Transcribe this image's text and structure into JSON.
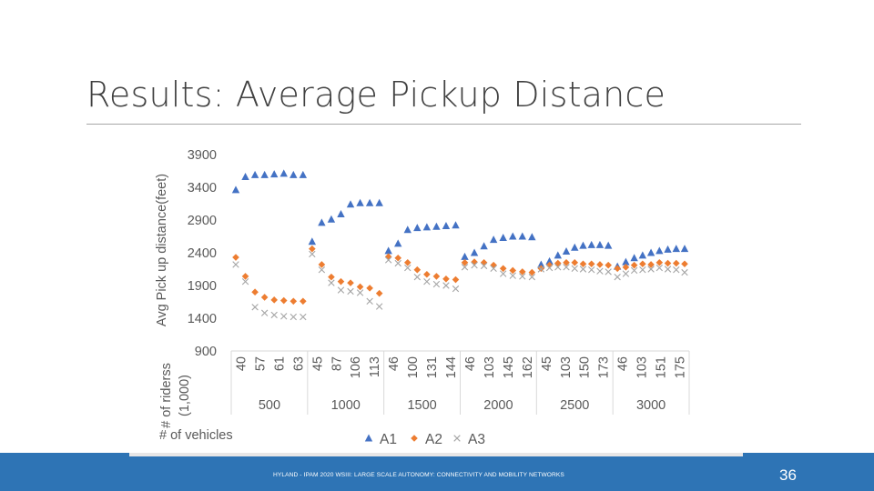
{
  "slide": {
    "title": "Results: Average Pickup Distance",
    "footer": "HYLAND - IPAM 2020 WSIII: LARGE SCALE AUTONOMY: CONNECTIVITY AND MOBILITY NETWORKS",
    "page_number": "36"
  },
  "chart_data": {
    "type": "scatter",
    "ylabel": "Avg Pick up distance(feet)",
    "ylim": [
      900,
      3900
    ],
    "yticks": [
      "3900",
      "3400",
      "2900",
      "2400",
      "1900",
      "1400",
      "900"
    ],
    "x_inner_label": "# of riderss (1,000)",
    "x_outer_label": "# of vehicles",
    "groups": [
      {
        "label": "500",
        "categories": [
          "40",
          "57",
          "61",
          "63"
        ]
      },
      {
        "label": "1000",
        "categories": [
          "45",
          "87",
          "106",
          "113"
        ]
      },
      {
        "label": "1500",
        "categories": [
          "46",
          "100",
          "131",
          "144"
        ]
      },
      {
        "label": "2000",
        "categories": [
          "46",
          "103",
          "145",
          "162"
        ]
      },
      {
        "label": "2500",
        "categories": [
          "45",
          "103",
          "150",
          "173"
        ]
      },
      {
        "label": "3000",
        "categories": [
          "46",
          "103",
          "151",
          "175"
        ]
      }
    ],
    "series": [
      {
        "name": "A1",
        "color": "#4472c4",
        "marker": "triangle",
        "values": [
          [
            3360,
            3560,
            3590,
            3590,
            3600,
            3610,
            3590,
            3590
          ],
          [
            2570,
            2860,
            2910,
            2990,
            3140,
            3160,
            3160,
            3160
          ],
          [
            2430,
            2540,
            2750,
            2780,
            2790,
            2800,
            2810,
            2820
          ],
          [
            2340,
            2400,
            2500,
            2600,
            2630,
            2650,
            2650,
            2640
          ],
          [
            2220,
            2270,
            2360,
            2420,
            2480,
            2510,
            2520,
            2520,
            2510
          ],
          [
            2190,
            2260,
            2320,
            2360,
            2400,
            2430,
            2450,
            2460,
            2460
          ]
        ]
      },
      {
        "name": "A2",
        "color": "#ed7d31",
        "marker": "diamond",
        "values": [
          [
            2330,
            2040,
            1800,
            1720,
            1680,
            1670,
            1660,
            1660
          ],
          [
            2460,
            2220,
            2030,
            1960,
            1940,
            1880,
            1860,
            1780
          ],
          [
            2340,
            2320,
            2250,
            2140,
            2070,
            2040,
            2000,
            1990
          ],
          [
            2250,
            2260,
            2250,
            2210,
            2160,
            2130,
            2110,
            2100
          ],
          [
            2160,
            2210,
            2240,
            2250,
            2250,
            2230,
            2230,
            2220,
            2210
          ],
          [
            2160,
            2180,
            2210,
            2230,
            2220,
            2250,
            2240,
            2240,
            2230
          ]
        ]
      },
      {
        "name": "A3",
        "color": "#a5a5a5",
        "marker": "cross",
        "values": [
          [
            2220,
            1960,
            1570,
            1480,
            1450,
            1430,
            1420,
            1420
          ],
          [
            2380,
            2140,
            1940,
            1830,
            1810,
            1790,
            1660,
            1580
          ],
          [
            2290,
            2240,
            2170,
            2030,
            1960,
            1920,
            1900,
            1850
          ],
          [
            2180,
            2210,
            2200,
            2160,
            2080,
            2050,
            2040,
            2030
          ],
          [
            2150,
            2170,
            2180,
            2180,
            2160,
            2150,
            2140,
            2120,
            2110
          ],
          [
            2030,
            2080,
            2130,
            2140,
            2150,
            2170,
            2150,
            2140,
            2100
          ]
        ]
      }
    ],
    "legend_position": "bottom"
  }
}
